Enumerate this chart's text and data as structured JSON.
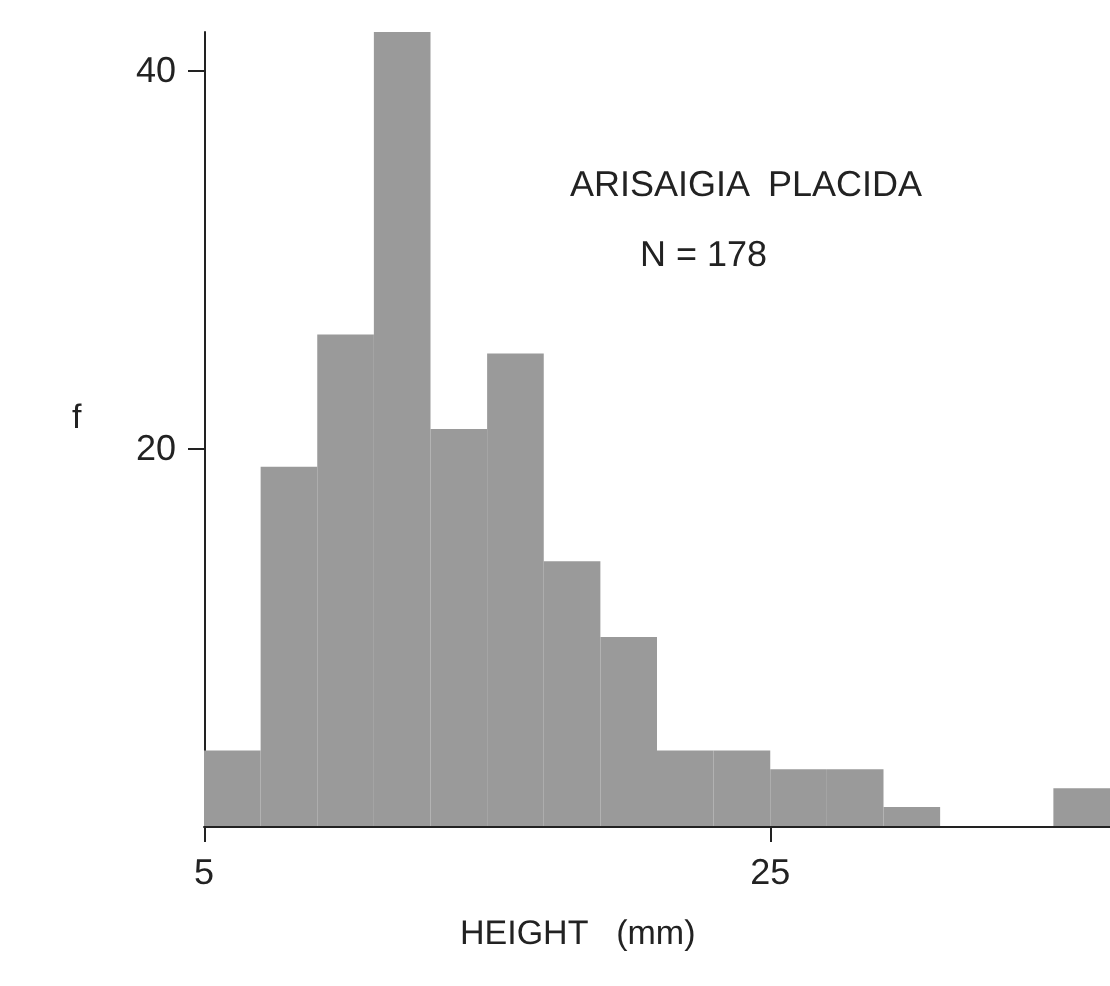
{
  "chart_data": {
    "type": "histogram",
    "annotations": [
      "ARISAIGIA  PLACIDA",
      "N = 178"
    ],
    "xlabel": "HEIGHT   (mm)",
    "ylabel": "f",
    "bins": [
      5,
      7,
      9,
      11,
      13,
      15,
      17,
      19,
      21,
      23,
      25,
      27,
      29,
      31,
      33,
      35,
      37
    ],
    "values": [
      4,
      19,
      26,
      42,
      21,
      25,
      14,
      10,
      4,
      4,
      3,
      3,
      1,
      0,
      0,
      2
    ],
    "color": "#9a9a9a",
    "xlim": [
      5,
      37
    ],
    "xticks": [
      5,
      25
    ],
    "ylim": [
      0,
      42
    ],
    "yticks": [
      20,
      40
    ],
    "grid": false
  }
}
